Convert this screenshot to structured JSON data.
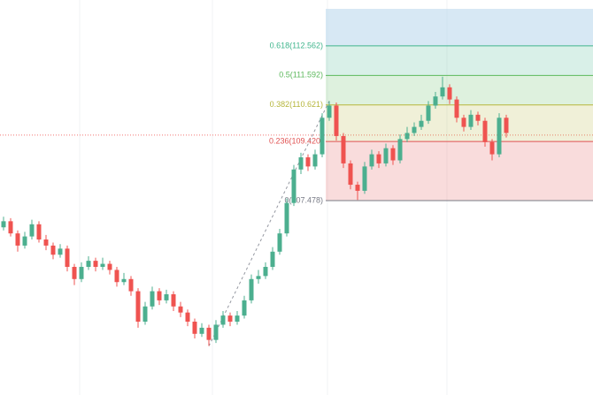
{
  "chart_data": {
    "type": "candlestick",
    "ylim": [
      101.09,
      114.07
    ],
    "up_color": "#4caf8f",
    "down_color": "#ef5350",
    "open": [
      106.6,
      106.8,
      106.4,
      106.0,
      106.3,
      106.7,
      106.2,
      106.0,
      105.7,
      105.9,
      105.3,
      104.9,
      105.3,
      105.5,
      105.3,
      105.4,
      105.2,
      104.8,
      104.9,
      104.5,
      103.5,
      104.0,
      104.5,
      104.2,
      104.4,
      104.0,
      103.8,
      103.5,
      103.1,
      103.3,
      102.9,
      103.4,
      103.7,
      103.5,
      103.7,
      104.2,
      104.9,
      105.0,
      105.3,
      105.8,
      106.4,
      107.4,
      108.5,
      108.9,
      108.6,
      109.0,
      110.2,
      110.6,
      109.6,
      108.7,
      108.0,
      107.8,
      108.6,
      109.0,
      108.7,
      109.2,
      108.8,
      109.5,
      109.7,
      109.9,
      110.1,
      110.6,
      110.9,
      111.2,
      110.8,
      110.2,
      109.9,
      110.3,
      110.1,
      109.4,
      109.0,
      110.2
    ],
    "high": [
      106.95,
      106.9,
      106.5,
      106.45,
      106.85,
      106.8,
      106.35,
      106.1,
      106.05,
      106.0,
      105.4,
      105.45,
      105.65,
      105.6,
      105.6,
      105.5,
      105.3,
      105.1,
      105.0,
      104.6,
      104.15,
      104.65,
      104.6,
      104.55,
      104.5,
      104.15,
      103.9,
      103.6,
      103.45,
      103.4,
      103.55,
      103.85,
      103.8,
      103.85,
      104.35,
      105.05,
      105.2,
      105.45,
      105.95,
      106.55,
      107.55,
      108.65,
      109.05,
      109.0,
      109.15,
      110.35,
      110.75,
      110.7,
      109.7,
      108.8,
      108.1,
      108.75,
      109.15,
      109.1,
      109.35,
      109.3,
      109.65,
      109.9,
      110.05,
      110.3,
      110.75,
      111.05,
      111.55,
      111.3,
      110.9,
      110.3,
      110.45,
      110.4,
      110.2,
      109.5,
      110.35,
      110.3
    ],
    "low": [
      106.5,
      106.3,
      105.8,
      105.9,
      106.2,
      106.1,
      105.85,
      105.55,
      105.6,
      105.15,
      104.7,
      104.8,
      105.2,
      105.15,
      105.2,
      105.05,
      104.65,
      104.7,
      104.35,
      103.3,
      103.4,
      103.9,
      104.05,
      104.1,
      103.85,
      103.65,
      103.35,
      102.95,
      103.0,
      102.7,
      102.8,
      103.3,
      103.35,
      103.4,
      103.6,
      104.1,
      104.75,
      104.9,
      105.2,
      105.7,
      106.3,
      107.3,
      108.35,
      108.45,
      108.5,
      108.9,
      110.1,
      109.45,
      108.55,
      107.85,
      107.5,
      107.7,
      108.5,
      108.55,
      108.6,
      108.65,
      108.7,
      109.4,
      109.6,
      109.8,
      110.0,
      110.5,
      110.8,
      110.65,
      110.05,
      109.75,
      109.8,
      109.95,
      109.25,
      108.8,
      108.9,
      109.55
    ],
    "close": [
      106.8,
      106.4,
      106.0,
      106.3,
      106.7,
      106.2,
      106.0,
      105.7,
      105.9,
      105.3,
      104.9,
      105.3,
      105.5,
      105.3,
      105.4,
      105.2,
      104.8,
      104.9,
      104.5,
      103.5,
      104.0,
      104.5,
      104.2,
      104.4,
      104.0,
      103.8,
      103.5,
      103.1,
      103.3,
      102.9,
      103.4,
      103.7,
      103.5,
      103.7,
      104.2,
      104.9,
      105.0,
      105.3,
      105.8,
      106.4,
      107.4,
      108.5,
      108.9,
      108.6,
      109.0,
      110.2,
      110.6,
      109.6,
      108.7,
      108.0,
      107.8,
      108.6,
      109.0,
      108.7,
      109.2,
      108.8,
      109.5,
      109.7,
      109.9,
      110.1,
      110.6,
      110.9,
      111.2,
      110.8,
      110.2,
      109.9,
      110.3,
      110.1,
      109.4,
      109.0,
      110.2,
      109.7
    ],
    "price_line": 109.63,
    "price_line_color": "#ef5350",
    "fib_levels": [
      {
        "ratio": 0,
        "price": 107.478,
        "label": "0(107.478)",
        "color": "#787b86"
      },
      {
        "ratio": 0.236,
        "price": 109.42,
        "label": "0.236(109.420)",
        "color": "#e05252"
      },
      {
        "ratio": 0.382,
        "price": 110.621,
        "label": "0.382(110.621)",
        "color": "#b5b53a"
      },
      {
        "ratio": 0.5,
        "price": 111.592,
        "label": "0.5(111.592)",
        "color": "#5cb85c"
      },
      {
        "ratio": 0.618,
        "price": 112.562,
        "label": "0.618(112.562)",
        "color": "#3fb58c"
      }
    ]
  }
}
